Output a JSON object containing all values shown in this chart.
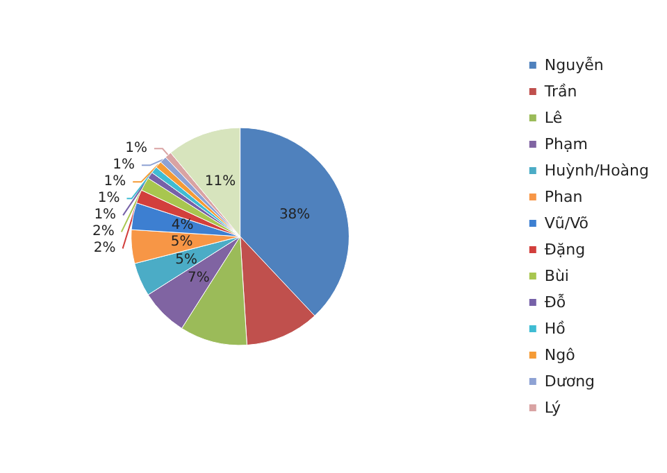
{
  "chart_data": {
    "type": "pie",
    "categories": [
      "Nguyễn",
      "Trần",
      "Lê",
      "Phạm",
      "Huỳnh/Hoàng",
      "Phan",
      "Vũ/Võ",
      "Đặng",
      "Bùi",
      "Đỗ",
      "Hồ",
      "Ngô",
      "Dương",
      "Lý",
      null
    ],
    "values": [
      38,
      11,
      10,
      7,
      5,
      5,
      4,
      2,
      2,
      1,
      1,
      1,
      1,
      1,
      11
    ],
    "value_labels": [
      "38%",
      null,
      null,
      "7%",
      "5%",
      "5%",
      "4%",
      "2%",
      "2%",
      "1%",
      "1%",
      "1%",
      "1%",
      "1%",
      "11%"
    ],
    "colors": [
      "#4f81bd",
      "#c0504d",
      "#9bbb59",
      "#8064a2",
      "#4bacc6",
      "#f79646",
      "#3d7fd1",
      "#d23f3c",
      "#a8c64f",
      "#7661a8",
      "#3fbcd3",
      "#f59b36",
      "#8ea2d4",
      "#d9a3a3",
      "#d7e4bd"
    ],
    "legend": "right"
  }
}
